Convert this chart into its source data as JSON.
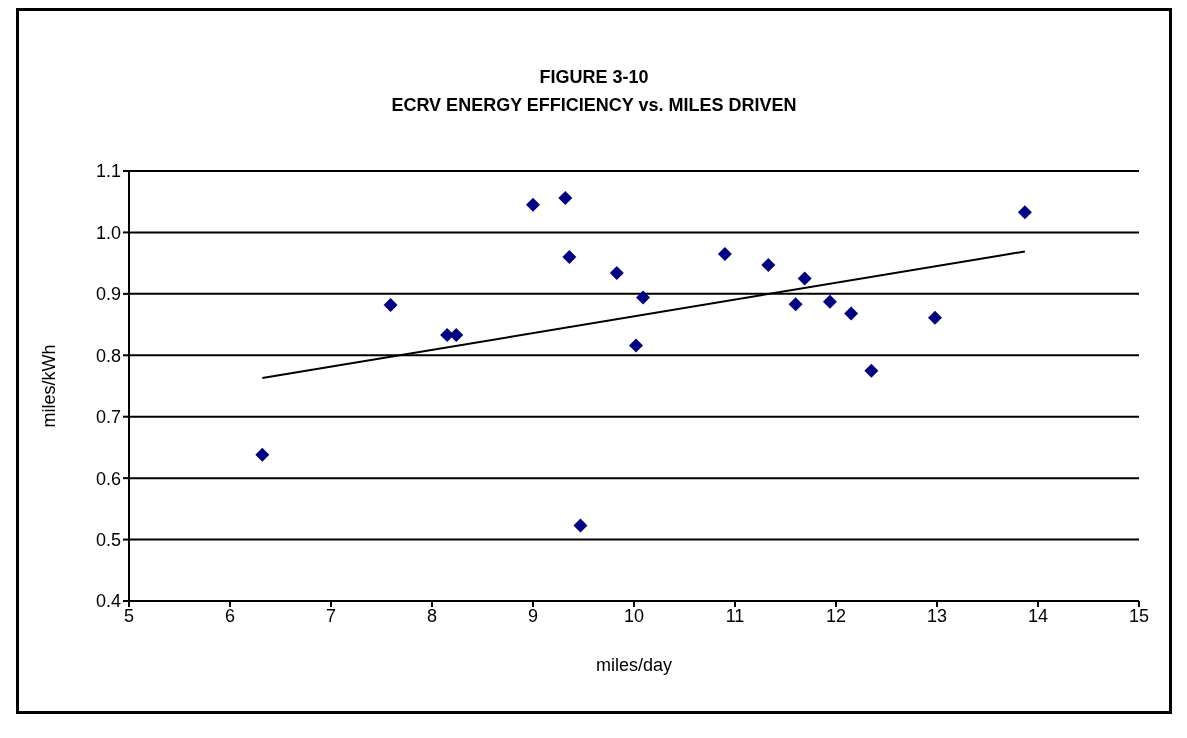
{
  "chart_data": {
    "type": "scatter",
    "title": "FIGURE 3-10",
    "subtitle": "ECRV ENERGY EFFICIENCY vs. MILES DRIVEN",
    "xlabel": "miles/day",
    "ylabel": "miles/kWh",
    "xlim": [
      5,
      15
    ],
    "xticks": [
      5,
      6,
      7,
      8,
      9,
      10,
      11,
      12,
      13,
      14,
      15
    ],
    "ylim": [
      0.4,
      1.1
    ],
    "yticks": [
      0.4,
      0.5,
      0.6,
      0.7,
      0.8,
      0.9,
      {
        "value": 1.0,
        "label": "1.0"
      },
      1.1
    ],
    "grid": "y",
    "series": [
      {
        "marker": "diamond",
        "color": "#000080",
        "x": [
          6.32,
          7.59,
          8.15,
          8.24,
          9.0,
          9.32,
          9.36,
          9.47,
          9.83,
          10.02,
          10.09,
          10.9,
          11.33,
          11.6,
          11.69,
          11.94,
          12.15,
          12.35,
          12.98,
          13.87
        ],
        "values": [
          0.638,
          0.882,
          0.833,
          0.833,
          1.045,
          1.056,
          0.96,
          0.523,
          0.934,
          0.816,
          0.894,
          0.965,
          0.947,
          0.883,
          0.925,
          0.887,
          0.868,
          0.775,
          0.861,
          1.033
        ]
      },
      {
        "type": "line",
        "color": "#000000",
        "x": [
          6.32,
          13.87
        ],
        "values": [
          0.763,
          0.969
        ]
      }
    ]
  }
}
